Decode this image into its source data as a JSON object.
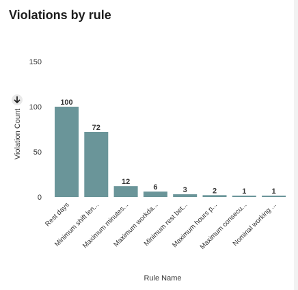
{
  "panel": {
    "title": "Violations by rule"
  },
  "icons": {
    "sort": "arrow-down-icon"
  },
  "colors": {
    "bar": "#6a9599",
    "text": "#333333",
    "title": "#1c1c1c"
  },
  "chart_data": {
    "type": "bar",
    "title": "Violations by rule",
    "xlabel": "Rule Name",
    "ylabel": "Violation Count",
    "ylim": [
      0,
      150
    ],
    "yticks": [
      0,
      50,
      100,
      150
    ],
    "grid": false,
    "categories": [
      "Rest days",
      "Minimum shift len...",
      "Maximum minutes...",
      "Maximum workda...",
      "Minimum rest bet...",
      "Maximum hours p...",
      "Maximum consecu...",
      "Nominal working ..."
    ],
    "values": [
      100,
      72,
      12,
      6,
      3,
      2,
      1,
      1
    ]
  }
}
